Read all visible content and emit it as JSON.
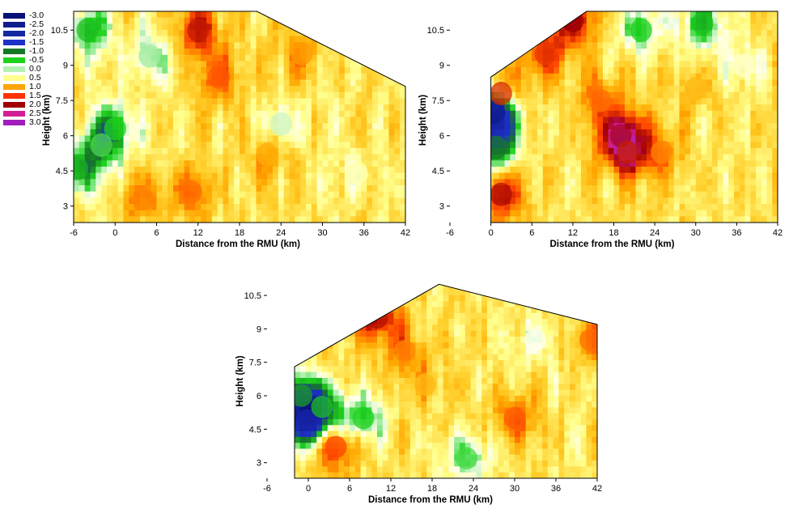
{
  "legend": {
    "levels": [
      {
        "label": "-3.0",
        "color": "#0a1278"
      },
      {
        "label": "-2.5",
        "color": "#101e8c"
      },
      {
        "label": "-2.0",
        "color": "#1428a0"
      },
      {
        "label": "-1.5",
        "color": "#1e32c8"
      },
      {
        "label": "-1.0",
        "color": "#167826"
      },
      {
        "label": "-0.5",
        "color": "#1ed21e"
      },
      {
        "label": "0.0",
        "color": "#b4f0b4"
      },
      {
        "label": "0.5",
        "color": "#ffff8c"
      },
      {
        "label": "1.0",
        "color": "#ffa500"
      },
      {
        "label": "1.5",
        "color": "#ff3200"
      },
      {
        "label": "2.0",
        "color": "#a00000"
      },
      {
        "label": "2.5",
        "color": "#d21e96"
      },
      {
        "label": "3.0",
        "color": "#a01ebe"
      }
    ]
  },
  "chart_data": [
    {
      "type": "heatmap",
      "xlabel": "Distance from the RMU (km)",
      "ylabel": "Height (km)",
      "xlim": [
        -6,
        42
      ],
      "ylim": [
        2.3,
        11.3
      ],
      "xticks": [
        "-6",
        "0",
        "6",
        "12",
        "18",
        "24",
        "30",
        "36",
        "42"
      ],
      "yticks": [
        "3",
        "4.5",
        "6",
        "7.5",
        "9",
        "10.5"
      ],
      "domain_outline": [
        [
          -6,
          2.3
        ],
        [
          -6,
          11.3
        ],
        [
          20.5,
          11.3
        ],
        [
          42,
          8.1
        ],
        [
          42,
          2.3
        ]
      ],
      "features": [
        {
          "x": 12,
          "y": 10.5,
          "v": 1.8
        },
        {
          "x": 15,
          "y": 8.5,
          "v": 1.4
        },
        {
          "x": 11,
          "y": 3.6,
          "v": 1.3
        },
        {
          "x": 4,
          "y": 3.3,
          "v": 1.2
        },
        {
          "x": 27,
          "y": 9.5,
          "v": 1.1
        },
        {
          "x": 22,
          "y": 5.2,
          "v": 1.0
        },
        {
          "x": -4,
          "y": 10.5,
          "v": -0.6
        },
        {
          "x": -5.5,
          "y": 4.6,
          "v": -0.7
        },
        {
          "x": 0,
          "y": 6.3,
          "v": -0.5
        },
        {
          "x": -2,
          "y": 5.6,
          "v": -0.4
        },
        {
          "x": 5,
          "y": 9.4,
          "v": -0.2
        },
        {
          "x": 24,
          "y": 6.5,
          "v": -0.1
        },
        {
          "x": 35,
          "y": 4.4,
          "v": 0.2
        }
      ]
    },
    {
      "type": "heatmap",
      "xlabel": "Distance from the RMU (km)",
      "ylabel": "Height (km)",
      "xlim": [
        -6,
        42
      ],
      "ylim": [
        2.3,
        11.3
      ],
      "xticks": [
        "-6",
        "0",
        "6",
        "12",
        "18",
        "24",
        "30",
        "36",
        "42"
      ],
      "yticks": [
        "3",
        "4.5",
        "6",
        "7.5",
        "9",
        "10.5"
      ],
      "domain_outline": [
        [
          0,
          2.3
        ],
        [
          0,
          8.5
        ],
        [
          14,
          11.3
        ],
        [
          42,
          11.3
        ],
        [
          42,
          2.3
        ]
      ],
      "features": [
        {
          "x": 0.5,
          "y": 7.0,
          "v": -2.6
        },
        {
          "x": 0.8,
          "y": 5.5,
          "v": -1.0
        },
        {
          "x": 1.5,
          "y": 3.5,
          "v": 1.9
        },
        {
          "x": 1.5,
          "y": 7.8,
          "v": 1.7
        },
        {
          "x": 8,
          "y": 9.5,
          "v": 1.6
        },
        {
          "x": 12,
          "y": 10.9,
          "v": 2.0
        },
        {
          "x": 19,
          "y": 6.0,
          "v": 2.1
        },
        {
          "x": 20,
          "y": 5.3,
          "v": 1.8
        },
        {
          "x": 16,
          "y": 7.5,
          "v": 1.3
        },
        {
          "x": 25,
          "y": 5.3,
          "v": 1.2
        },
        {
          "x": 30,
          "y": 8.0,
          "v": 0.9
        },
        {
          "x": 22,
          "y": 10.5,
          "v": -0.5
        },
        {
          "x": 31,
          "y": 10.8,
          "v": -0.6
        },
        {
          "x": 37,
          "y": 9.0,
          "v": 0.1
        }
      ]
    },
    {
      "type": "heatmap",
      "xlabel": "Distance from the RMU (km)",
      "ylabel": "Height (km)",
      "xlim": [
        -6,
        42
      ],
      "ylim": [
        2.3,
        11.3
      ],
      "xticks": [
        "-6",
        "0",
        "6",
        "12",
        "18",
        "24",
        "30",
        "36",
        "42"
      ],
      "yticks": [
        "3",
        "4.5",
        "6",
        "7.5",
        "9",
        "10.5"
      ],
      "domain_outline": [
        [
          -2,
          2.3
        ],
        [
          -2,
          7.3
        ],
        [
          19,
          11.0
        ],
        [
          42,
          9.2
        ],
        [
          42,
          2.3
        ]
      ],
      "features": [
        {
          "x": -0.2,
          "y": 4.9,
          "v": -2.0
        },
        {
          "x": -1,
          "y": 6.0,
          "v": -0.8
        },
        {
          "x": 2,
          "y": 5.5,
          "v": -0.6
        },
        {
          "x": 8,
          "y": 5.0,
          "v": -0.5
        },
        {
          "x": 4,
          "y": 3.7,
          "v": 1.5
        },
        {
          "x": 10,
          "y": 9.5,
          "v": 1.9
        },
        {
          "x": 14,
          "y": 8.0,
          "v": 1.2
        },
        {
          "x": 30,
          "y": 5.0,
          "v": 1.4
        },
        {
          "x": 41,
          "y": 8.5,
          "v": 1.3
        },
        {
          "x": 33,
          "y": 8.5,
          "v": 0.0
        },
        {
          "x": 23,
          "y": 3.2,
          "v": -0.4
        },
        {
          "x": 17,
          "y": 6.5,
          "v": 0.9
        }
      ]
    }
  ]
}
